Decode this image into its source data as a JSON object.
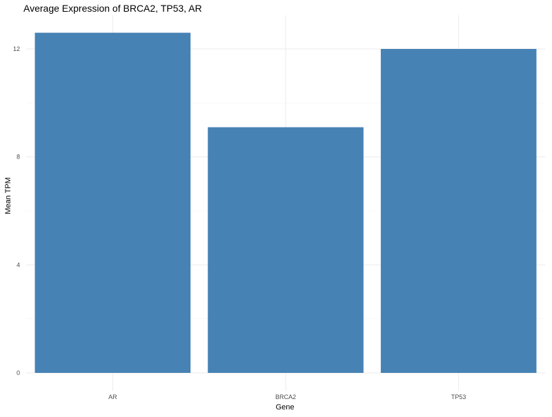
{
  "chart_data": {
    "type": "bar",
    "title": "Average Expression of BRCA2, TP53, AR",
    "xlabel": "Gene",
    "ylabel": "Mean TPM",
    "categories": [
      "AR",
      "BRCA2",
      "TP53"
    ],
    "values": [
      12.6,
      9.1,
      12.0
    ],
    "ylim": [
      0,
      13.0
    ],
    "y_ticks": [
      0,
      4,
      8,
      12
    ],
    "y_minor_ticks": [
      2,
      6,
      10
    ],
    "bar_color": "#4682B4",
    "grid": true,
    "legend": "none"
  }
}
